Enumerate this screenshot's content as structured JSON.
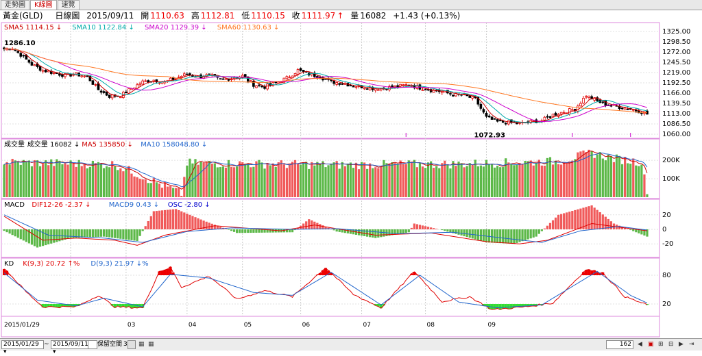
{
  "tabs": [
    "走勢圖",
    "K線圖",
    "速覽"
  ],
  "header": {
    "name": "黃金(GLD)",
    "period": "日線圖",
    "date": "2015/09/11",
    "open_label": "開",
    "open": "1110.63",
    "high_label": "高",
    "high": "1112.81",
    "low_label": "低",
    "low": "1110.15",
    "close_label": "收",
    "close": "1111.97",
    "vol_label": "量",
    "volume": "16082",
    "change": "+1.43 (+0.13%)"
  },
  "colors": {
    "up": "#f05a5a",
    "down": "#5cb848",
    "sma5": "#cc0000",
    "sma10": "#00aaaa",
    "sma20": "#cc00cc",
    "sma60": "#ff7722",
    "ma5": "#cc0000",
    "ma10": "#2266cc",
    "dif": "#e00000",
    "macd": "#2266cc",
    "k": "#e00000",
    "d": "#2266cc",
    "border": "#dd88dd"
  },
  "legends": {
    "price": [
      {
        "label": "SMA5 1114.15",
        "arrow": "↓",
        "color": "#cc0000"
      },
      {
        "label": "SMA10 1122.84",
        "arrow": "↓",
        "color": "#00aaaa"
      },
      {
        "label": "SMA20 1129.39",
        "arrow": "↓",
        "color": "#cc00cc"
      },
      {
        "label": "SMA60 1130.63",
        "arrow": "↓",
        "color": "#ff7722"
      }
    ],
    "volume": [
      {
        "label": "成交量",
        "arrow": "",
        "color": "#000"
      },
      {
        "label": "成交量 16082",
        "arrow": "↓",
        "color": "#000"
      },
      {
        "label": "MA5 135850",
        "arrow": "↓",
        "color": "#cc0000"
      },
      {
        "label": "MA10 158048.80",
        "arrow": "↓",
        "color": "#2266cc"
      }
    ],
    "macd": [
      {
        "label": "MACD",
        "arrow": "",
        "color": "#000"
      },
      {
        "label": "DIF12-26 -2.37",
        "arrow": "↓",
        "color": "#e00000"
      },
      {
        "label": "MACD9 0.43",
        "arrow": "↓",
        "color": "#2266cc"
      },
      {
        "label": "OSC -2.80",
        "arrow": "↓",
        "color": "#0000cc"
      }
    ],
    "kd": [
      {
        "label": "KD",
        "arrow": "",
        "color": "#000"
      },
      {
        "label": "K(9,3) 20.72",
        "arrow": "↑%",
        "color": "#e00000"
      },
      {
        "label": "D(9,3) 21.97",
        "arrow": "↓%",
        "color": "#2266cc"
      }
    ]
  },
  "annotations": {
    "high": "1286.10",
    "low": "1072.93"
  },
  "chart_data": [
    {
      "type": "candlestick",
      "title": "黃金(GLD) 日線圖",
      "y_ticks": [
        "1325.00",
        "1298.50",
        "1272.00",
        "1245.50",
        "1219.00",
        "1192.50",
        "1166.00",
        "1139.50",
        "1113.00",
        "1086.50",
        "1060.00"
      ],
      "ylim": [
        1060,
        1325
      ],
      "x_ticks": [
        "2015/01/29",
        "03",
        "04",
        "05",
        "06",
        "07",
        "08",
        "09"
      ],
      "close_anchors": [
        [
          0,
          1280
        ],
        [
          3,
          1282
        ],
        [
          6,
          1265
        ],
        [
          10,
          1240
        ],
        [
          14,
          1225
        ],
        [
          18,
          1218
        ],
        [
          22,
          1212
        ],
        [
          26,
          1215
        ],
        [
          30,
          1208
        ],
        [
          34,
          1175
        ],
        [
          38,
          1158
        ],
        [
          42,
          1160
        ],
        [
          46,
          1178
        ],
        [
          50,
          1195
        ],
        [
          54,
          1200
        ],
        [
          58,
          1195
        ],
        [
          62,
          1205
        ],
        [
          66,
          1215
        ],
        [
          70,
          1208
        ],
        [
          74,
          1212
        ],
        [
          78,
          1200
        ],
        [
          82,
          1205
        ],
        [
          86,
          1210
        ],
        [
          90,
          1188
        ],
        [
          94,
          1182
        ],
        [
          98,
          1192
        ],
        [
          102,
          1205
        ],
        [
          106,
          1225
        ],
        [
          110,
          1215
        ],
        [
          114,
          1208
        ],
        [
          118,
          1195
        ],
        [
          122,
          1192
        ],
        [
          126,
          1185
        ],
        [
          130,
          1182
        ],
        [
          134,
          1178
        ],
        [
          138,
          1180
        ],
        [
          142,
          1183
        ],
        [
          146,
          1188
        ],
        [
          150,
          1180
        ],
        [
          154,
          1174
        ],
        [
          158,
          1170
        ],
        [
          162,
          1162
        ],
        [
          166,
          1160
        ],
        [
          170,
          1150
        ],
        [
          174,
          1103
        ],
        [
          178,
          1092
        ],
        [
          182,
          1090
        ],
        [
          186,
          1087
        ],
        [
          190,
          1092
        ],
        [
          194,
          1095
        ],
        [
          198,
          1110
        ],
        [
          202,
          1118
        ],
        [
          206,
          1125
        ],
        [
          210,
          1160
        ],
        [
          214,
          1145
        ],
        [
          218,
          1135
        ],
        [
          222,
          1130
        ],
        [
          226,
          1125
        ],
        [
          230,
          1118
        ],
        [
          232,
          1112
        ]
      ]
    },
    {
      "type": "bar",
      "title": "成交量",
      "y_ticks": [
        "200K",
        "100K"
      ],
      "ylim": [
        0,
        260000
      ],
      "volume_anchors": [
        [
          0,
          190000
        ],
        [
          40,
          178000
        ],
        [
          64,
          20000
        ],
        [
          66,
          185000
        ],
        [
          120,
          175000
        ],
        [
          165,
          180000
        ],
        [
          200,
          195000
        ],
        [
          212,
          240000
        ],
        [
          220,
          210000
        ],
        [
          230,
          190000
        ],
        [
          232,
          16082
        ]
      ]
    },
    {
      "type": "bar",
      "title": "MACD",
      "y_ticks": [
        "20",
        "0",
        "-20"
      ],
      "ylim": [
        -33,
        33
      ],
      "osc_anchors": [
        [
          0,
          -2
        ],
        [
          12,
          -25
        ],
        [
          24,
          -12
        ],
        [
          36,
          -10
        ],
        [
          48,
          -16
        ],
        [
          54,
          25
        ],
        [
          62,
          28
        ],
        [
          72,
          12
        ],
        [
          84,
          -5
        ],
        [
          104,
          -4
        ],
        [
          110,
          14
        ],
        [
          120,
          -3
        ],
        [
          134,
          -12
        ],
        [
          146,
          -4
        ],
        [
          148,
          8
        ],
        [
          158,
          -1
        ],
        [
          174,
          -18
        ],
        [
          184,
          -20
        ],
        [
          192,
          -10
        ],
        [
          200,
          20
        ],
        [
          212,
          33
        ],
        [
          220,
          8
        ],
        [
          232,
          -10
        ]
      ],
      "dif_anchors": [
        [
          0,
          18
        ],
        [
          14,
          -15
        ],
        [
          26,
          -12
        ],
        [
          40,
          -15
        ],
        [
          48,
          -22
        ],
        [
          58,
          -8
        ],
        [
          76,
          5
        ],
        [
          100,
          -2
        ],
        [
          112,
          6
        ],
        [
          134,
          -8
        ],
        [
          154,
          -5
        ],
        [
          174,
          -17
        ],
        [
          186,
          -20
        ],
        [
          196,
          -15
        ],
        [
          212,
          8
        ],
        [
          232,
          -2
        ]
      ],
      "macd9_anchors": [
        [
          0,
          20
        ],
        [
          16,
          -8
        ],
        [
          36,
          -12
        ],
        [
          50,
          -18
        ],
        [
          66,
          -3
        ],
        [
          82,
          2
        ],
        [
          104,
          0
        ],
        [
          120,
          1
        ],
        [
          142,
          -6
        ],
        [
          162,
          -4
        ],
        [
          180,
          -12
        ],
        [
          194,
          -18
        ],
        [
          208,
          -2
        ],
        [
          222,
          4
        ],
        [
          232,
          -1
        ]
      ]
    },
    {
      "type": "line",
      "title": "KD",
      "y_ticks": [
        "80",
        "20"
      ],
      "ylim": [
        0,
        100
      ],
      "k_anchors": [
        [
          0,
          95
        ],
        [
          8,
          45
        ],
        [
          14,
          14
        ],
        [
          26,
          14
        ],
        [
          34,
          38
        ],
        [
          40,
          14
        ],
        [
          50,
          12
        ],
        [
          56,
          88
        ],
        [
          60,
          96
        ],
        [
          64,
          55
        ],
        [
          74,
          78
        ],
        [
          84,
          30
        ],
        [
          94,
          48
        ],
        [
          104,
          35
        ],
        [
          116,
          96
        ],
        [
          126,
          40
        ],
        [
          136,
          12
        ],
        [
          148,
          88
        ],
        [
          158,
          25
        ],
        [
          168,
          35
        ],
        [
          176,
          8
        ],
        [
          188,
          14
        ],
        [
          198,
          22
        ],
        [
          210,
          92
        ],
        [
          216,
          85
        ],
        [
          224,
          35
        ],
        [
          232,
          18
        ]
      ],
      "d_anchors": [
        [
          0,
          85
        ],
        [
          12,
          28
        ],
        [
          26,
          16
        ],
        [
          36,
          32
        ],
        [
          50,
          14
        ],
        [
          60,
          82
        ],
        [
          74,
          74
        ],
        [
          90,
          44
        ],
        [
          104,
          38
        ],
        [
          118,
          86
        ],
        [
          136,
          18
        ],
        [
          150,
          80
        ],
        [
          164,
          24
        ],
        [
          178,
          12
        ],
        [
          194,
          18
        ],
        [
          214,
          88
        ],
        [
          226,
          38
        ],
        [
          232,
          22
        ]
      ]
    }
  ],
  "bottom": {
    "start_date": "2015/01/29",
    "tilde": "~",
    "end_date": "2015/09/11",
    "reserve_label": "保留空間",
    "reserve_value": "3",
    "count": "162"
  }
}
